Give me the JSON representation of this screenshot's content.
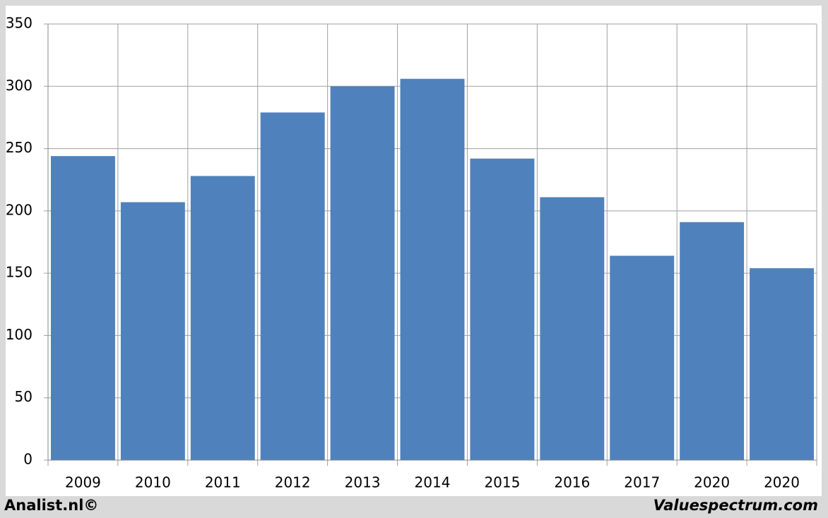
{
  "chart_data": {
    "type": "bar",
    "categories": [
      "2009",
      "2010",
      "2011",
      "2012",
      "2013",
      "2014",
      "2015",
      "2016",
      "2017",
      "2020",
      "2020"
    ],
    "values": [
      244,
      207,
      228,
      279,
      300,
      306,
      242,
      211,
      164,
      191,
      154
    ],
    "color": "#4f81bd",
    "ylim": [
      0,
      350
    ],
    "yticks": [
      0,
      50,
      100,
      150,
      200,
      250,
      300,
      350
    ],
    "grid": true,
    "footer_left": "Analist.nl©",
    "footer_right": "Valuespectrum.com"
  }
}
